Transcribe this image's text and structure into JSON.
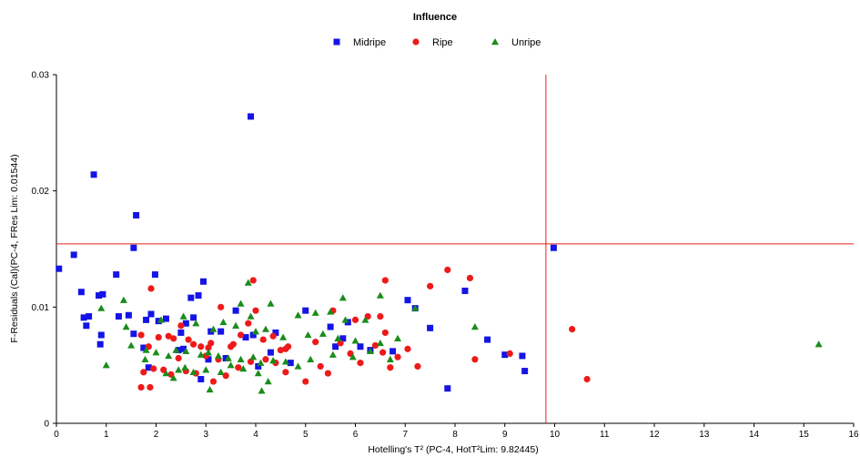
{
  "chart_data": {
    "type": "scatter",
    "title": "Influence",
    "xlabel": "Hotelling's T² (PC-4, HotT²Lim: 9.82445)",
    "ylabel": "F-Residuals (Cal)(PC-4, FRes Lim: 0.01544)",
    "xlim": [
      0,
      16
    ],
    "ylim": [
      0,
      0.03
    ],
    "x_ticks": [
      0,
      1,
      2,
      3,
      4,
      5,
      6,
      7,
      8,
      9,
      10,
      11,
      12,
      13,
      14,
      15,
      16
    ],
    "y_ticks": [
      0,
      0.01,
      0.02,
      0.03
    ],
    "grid": false,
    "legend_position": "top-center",
    "limits": {
      "x": 9.82445,
      "y": 0.01544,
      "color": "#e8201a"
    },
    "series": [
      {
        "name": "Midripe",
        "marker": "square",
        "color": "#1414e6",
        "x": [
          3.9,
          0.75,
          1.6,
          0.05,
          0.35,
          1.55,
          9.98,
          1.2,
          1.98,
          2.95,
          0.5,
          0.85,
          0.93,
          2.85,
          2.7,
          3.6,
          1.45,
          0.65,
          1.25,
          1.9,
          2.2,
          2.6,
          2.75,
          3.3,
          3.95,
          0.6,
          0.55,
          0.9,
          1.55,
          1.8,
          2.05,
          2.5,
          3.1,
          3.8,
          4.4,
          5.0,
          5.5,
          5.75,
          5.85,
          6.3,
          7.05,
          7.2,
          7.5,
          8.2,
          0.88,
          1.75,
          2.45,
          2.9,
          3.4,
          4.05,
          4.7,
          5.6,
          6.1,
          6.75,
          8.65,
          9.0,
          9.4,
          9.35,
          7.85,
          2.55,
          3.05,
          4.3,
          1.85
        ],
        "y": [
          0.0264,
          0.0214,
          0.0179,
          0.0133,
          0.0145,
          0.0151,
          0.0151,
          0.0128,
          0.0128,
          0.0122,
          0.0113,
          0.011,
          0.0111,
          0.011,
          0.0108,
          0.0097,
          0.0093,
          0.0092,
          0.0092,
          0.0094,
          0.009,
          0.0086,
          0.0091,
          0.0079,
          0.0076,
          0.0084,
          0.0091,
          0.0076,
          0.0077,
          0.0089,
          0.0088,
          0.0078,
          0.0079,
          0.0074,
          0.0078,
          0.0097,
          0.0083,
          0.0073,
          0.0087,
          0.0063,
          0.0106,
          0.0099,
          0.0082,
          0.0114,
          0.0068,
          0.0065,
          0.0063,
          0.0038,
          0.0056,
          0.0049,
          0.0052,
          0.0066,
          0.0066,
          0.0062,
          0.0072,
          0.0059,
          0.0045,
          0.0058,
          0.003,
          0.0064,
          0.0055,
          0.0061,
          0.0048
        ]
      },
      {
        "name": "Ripe",
        "marker": "circle",
        "color": "#ee1a1a",
        "x": [
          3.95,
          1.9,
          7.85,
          8.3,
          6.6,
          7.5,
          3.3,
          4.0,
          6.25,
          5.55,
          6.5,
          2.05,
          2.25,
          2.35,
          2.5,
          2.65,
          2.9,
          3.1,
          3.55,
          3.85,
          4.15,
          4.35,
          4.6,
          5.2,
          5.7,
          6.0,
          6.4,
          6.6,
          7.05,
          1.7,
          1.85,
          2.75,
          3.05,
          3.5,
          3.7,
          4.5,
          4.65,
          5.9,
          6.55,
          6.85,
          1.75,
          1.95,
          2.15,
          2.45,
          2.8,
          3.15,
          3.25,
          3.65,
          4.2,
          4.4,
          4.6,
          5.3,
          6.1,
          6.7,
          7.25,
          8.4,
          9.1,
          10.35,
          10.65,
          1.7,
          1.88,
          2.3,
          2.6,
          3.0,
          3.4,
          3.9,
          5.0,
          5.45
        ],
        "y": [
          0.0123,
          0.0116,
          0.0132,
          0.0125,
          0.0123,
          0.0118,
          0.01,
          0.0097,
          0.0092,
          0.0097,
          0.0092,
          0.0074,
          0.0075,
          0.0073,
          0.0084,
          0.0072,
          0.0066,
          0.0069,
          0.0068,
          0.0086,
          0.0072,
          0.0075,
          0.0064,
          0.007,
          0.0069,
          0.0089,
          0.0067,
          0.0078,
          0.0064,
          0.0076,
          0.0066,
          0.0068,
          0.0065,
          0.0066,
          0.0076,
          0.0063,
          0.0066,
          0.006,
          0.0061,
          0.0057,
          0.0044,
          0.0047,
          0.0046,
          0.0056,
          0.0043,
          0.0036,
          0.0055,
          0.0048,
          0.0055,
          0.0052,
          0.0044,
          0.0049,
          0.0052,
          0.0048,
          0.0049,
          0.0055,
          0.006,
          0.0081,
          0.0038,
          0.0031,
          0.0031,
          0.0042,
          0.0045,
          0.0058,
          0.0041,
          0.0053,
          0.0036,
          0.0043
        ]
      },
      {
        "name": "Unripe",
        "marker": "triangle",
        "color": "#1a8c1a",
        "x": [
          3.85,
          5.75,
          6.5,
          4.3,
          1.35,
          0.9,
          2.55,
          3.7,
          2.1,
          3.9,
          4.85,
          5.2,
          5.5,
          5.8,
          6.2,
          7.2,
          1.4,
          2.8,
          3.15,
          3.35,
          3.6,
          4.0,
          4.2,
          4.55,
          5.05,
          5.35,
          5.65,
          6.0,
          6.5,
          6.85,
          8.4,
          1.0,
          1.5,
          1.8,
          2.0,
          2.25,
          2.4,
          2.6,
          2.9,
          3.05,
          3.25,
          3.45,
          3.7,
          3.95,
          4.1,
          4.35,
          4.6,
          4.85,
          5.1,
          5.55,
          5.95,
          6.3,
          6.7,
          2.2,
          2.45,
          2.75,
          3.0,
          3.3,
          3.5,
          3.75,
          4.05,
          4.25,
          3.08,
          2.35,
          2.58,
          4.12,
          1.78,
          15.3
        ],
        "y": [
          0.0121,
          0.0108,
          0.011,
          0.0103,
          0.0106,
          0.0099,
          0.0092,
          0.0103,
          0.0089,
          0.0092,
          0.0093,
          0.0095,
          0.0096,
          0.0089,
          0.0089,
          0.0099,
          0.0083,
          0.0086,
          0.0081,
          0.0087,
          0.0084,
          0.0079,
          0.0081,
          0.0074,
          0.0076,
          0.0077,
          0.0073,
          0.0071,
          0.0069,
          0.0073,
          0.0083,
          0.005,
          0.0067,
          0.0063,
          0.0061,
          0.0058,
          0.0063,
          0.0062,
          0.0059,
          0.0061,
          0.0058,
          0.0056,
          0.0055,
          0.0057,
          0.0052,
          0.0054,
          0.0053,
          0.0049,
          0.0055,
          0.0059,
          0.0057,
          0.0062,
          0.0055,
          0.0043,
          0.0046,
          0.0044,
          0.0046,
          0.0044,
          0.005,
          0.0047,
          0.0043,
          0.0036,
          0.0029,
          0.0039,
          0.0048,
          0.0028,
          0.0055,
          0.0068
        ]
      }
    ]
  }
}
